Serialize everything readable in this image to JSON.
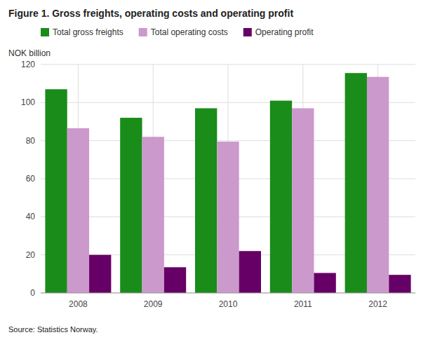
{
  "chart_data": {
    "type": "bar",
    "title": "Figure 1. Gross freights, operating costs and operating profit",
    "ylabel": "NOK billion",
    "source": "Source: Statistics Norway.",
    "categories": [
      "2008",
      "2009",
      "2010",
      "2011",
      "2012"
    ],
    "series": [
      {
        "name": "Total gross freights",
        "color": "#1a8c1a",
        "values": [
          107.0,
          92.0,
          97.0,
          101.0,
          115.5
        ]
      },
      {
        "name": "Total operating costs",
        "color": "#cc99cc",
        "values": [
          86.5,
          82.0,
          79.5,
          97.0,
          113.5
        ]
      },
      {
        "name": "Operating profit",
        "color": "#660066",
        "values": [
          20.0,
          13.5,
          22.0,
          10.5,
          9.5
        ]
      }
    ],
    "ylim": [
      0,
      120
    ],
    "yticks": [
      0,
      20,
      40,
      60,
      80,
      100,
      120
    ],
    "grid": true,
    "legend": "top"
  }
}
